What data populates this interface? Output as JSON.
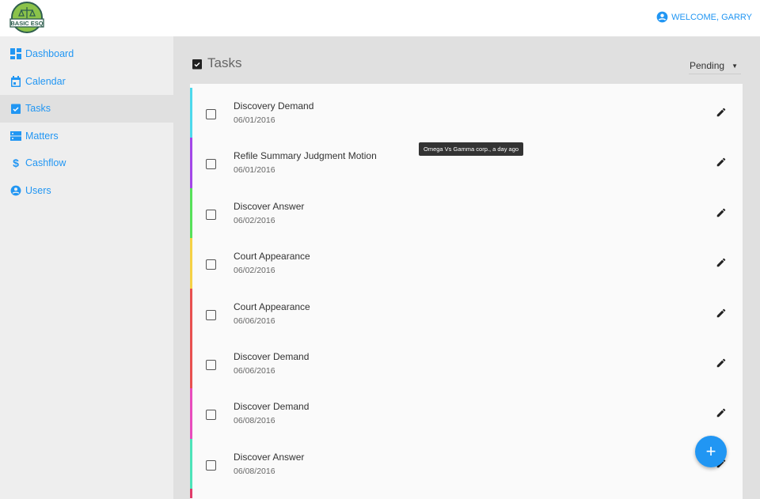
{
  "header": {
    "logo_text": "BASIC ESQ",
    "welcome": "WELCOME, GARRY"
  },
  "sidebar": {
    "items": [
      {
        "label": "Dashboard",
        "icon": "dashboard-icon"
      },
      {
        "label": "Calendar",
        "icon": "calendar-icon"
      },
      {
        "label": "Tasks",
        "icon": "tasks-icon",
        "active": true
      },
      {
        "label": "Matters",
        "icon": "matters-icon"
      },
      {
        "label": "Cashflow",
        "icon": "dollar-icon"
      },
      {
        "label": "Users",
        "icon": "user-icon"
      }
    ]
  },
  "main": {
    "title": "Tasks",
    "filter": "Pending",
    "tasks": [
      {
        "name": "Discovery Demand",
        "date": "06/01/2016",
        "color": "#4dd9ec"
      },
      {
        "name": "Refile Summary Judgment Motion",
        "date": "06/01/2016",
        "color": "#a347e8"
      },
      {
        "name": "Discover Answer",
        "date": "06/02/2016",
        "color": "#57e05a"
      },
      {
        "name": "Court Appearance",
        "date": "06/02/2016",
        "color": "#f5d145"
      },
      {
        "name": "Court Appearance",
        "date": "06/06/2016",
        "color": "#e85050"
      },
      {
        "name": "Discover Demand",
        "date": "06/06/2016",
        "color": "#e85050"
      },
      {
        "name": "Discover Demand",
        "date": "06/08/2016",
        "color": "#e84bbd"
      },
      {
        "name": "Discover Answer",
        "date": "06/08/2016",
        "color": "#4de3b9"
      },
      {
        "name": "",
        "date": "",
        "color": "#e03c6a"
      }
    ],
    "tooltip": "Omega Vs Gamma corp., a day ago",
    "fab_label": "+"
  },
  "colors": {
    "accent": "#2196f3"
  }
}
